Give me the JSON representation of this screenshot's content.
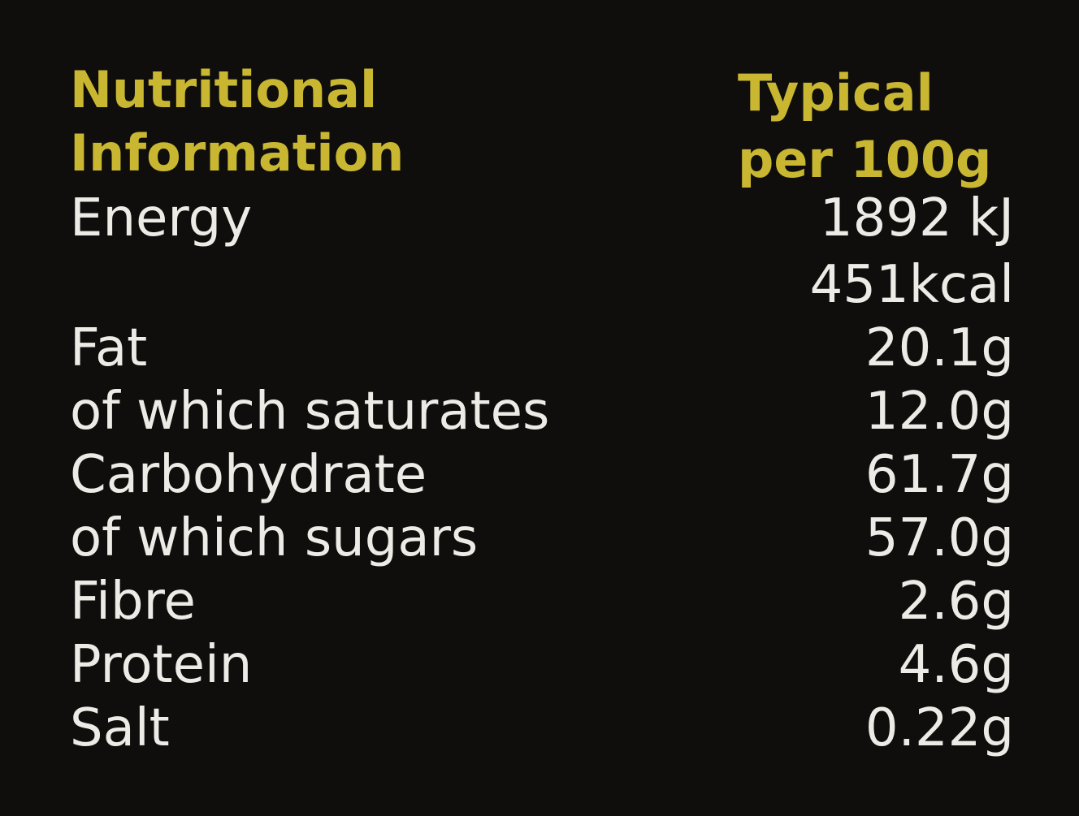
{
  "header": {
    "left": [
      "Nutritional",
      "Information"
    ],
    "right": [
      "Typical",
      "per 100g"
    ],
    "color": "#c9b732"
  },
  "rows": [
    {
      "label": "Energy",
      "value": "1892 kJ"
    },
    {
      "label": "",
      "value": "451kcal"
    },
    {
      "label": "Fat",
      "value": "20.1g"
    },
    {
      "label": "of which saturates",
      "value": "12.0g"
    },
    {
      "label": "Carbohydrate",
      "value": "61.7g"
    },
    {
      "label": "of which sugars",
      "value": "57.0g"
    },
    {
      "label": "Fibre",
      "value": "2.6g"
    },
    {
      "label": "Protein",
      "value": "4.6g"
    },
    {
      "label": "Salt",
      "value": "0.22g"
    }
  ]
}
